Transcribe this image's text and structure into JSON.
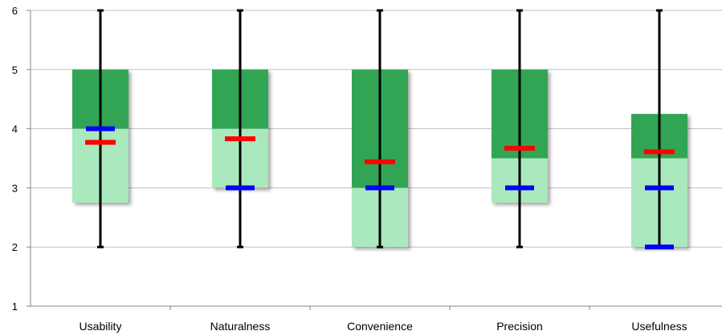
{
  "chart_data": {
    "type": "box",
    "categories": [
      "Usability",
      "Naturalness",
      "Convenience",
      "Precision",
      "Usefulness"
    ],
    "ylim": [
      1,
      6
    ],
    "yticks": [
      1,
      2,
      3,
      4,
      5,
      6
    ],
    "grid": true,
    "boxes": [
      {
        "min": 2,
        "q1": 2.75,
        "median": 4,
        "q3": 5,
        "max": 6,
        "mean": 3.77
      },
      {
        "min": 2,
        "q1": 3,
        "median": 4,
        "q3": 5,
        "max": 6,
        "mean": 3.83
      },
      {
        "min": 2,
        "q1": 2,
        "median": 3,
        "q3": 5,
        "max": 6,
        "mean": 3.44
      },
      {
        "min": 2,
        "q1": 2.75,
        "median": 3.5,
        "q3": 5,
        "max": 6,
        "mean": 3.67
      },
      {
        "min": 2,
        "q1": 2,
        "median": 3.5,
        "q3": 4.25,
        "max": 6,
        "mean": 3.61
      }
    ],
    "markers": {
      "blue": [
        4,
        3,
        3,
        3,
        [
          3,
          2
        ]
      ]
    },
    "colors": {
      "upper_box": "#33a555",
      "lower_box": "#a9e9bd",
      "mean_marker": "#ff0000",
      "blue_marker": "#0000ff",
      "whisker": "#000000",
      "grid": "#bfbfbf"
    }
  }
}
